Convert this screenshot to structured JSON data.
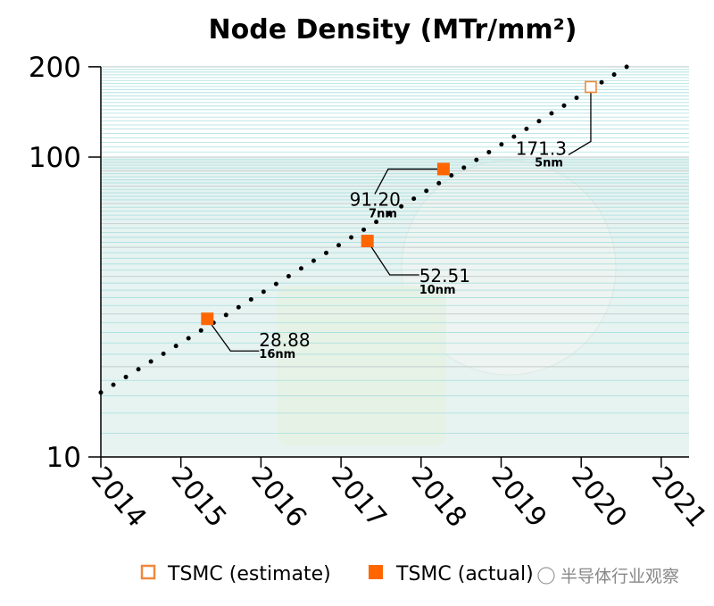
{
  "chart_data": {
    "type": "scatter",
    "title": "Node Density (MTr/mm²)",
    "xlabel": "",
    "ylabel": "",
    "xlim": [
      2014,
      2021.35
    ],
    "ylim": [
      10,
      200
    ],
    "yscale": "log",
    "y_ticks": [
      {
        "v": 10,
        "label": "10"
      },
      {
        "v": 100,
        "label": "100"
      },
      {
        "v": 200,
        "label": "200"
      }
    ],
    "x_ticks": [
      {
        "v": 2014,
        "label": "2014"
      },
      {
        "v": 2015,
        "label": "2015"
      },
      {
        "v": 2016,
        "label": "2016"
      },
      {
        "v": 2017,
        "label": "2017"
      },
      {
        "v": 2018,
        "label": "2018"
      },
      {
        "v": 2019,
        "label": "2019"
      },
      {
        "v": 2020,
        "label": "2020"
      },
      {
        "v": 2021,
        "label": "2021"
      }
    ],
    "grid": true,
    "series": [
      {
        "name": "TSMC (estimate)",
        "style": "hollow-square",
        "color": "#f0883e",
        "points": [
          {
            "x": 2020.12,
            "y": 171.3,
            "value": "171.3",
            "node": "5nm"
          }
        ]
      },
      {
        "name": "TSMC (actual)",
        "style": "filled-square",
        "color": "#ff6600",
        "points": [
          {
            "x": 2015.33,
            "y": 28.88,
            "value": "28.88",
            "node": "16nm"
          },
          {
            "x": 2017.33,
            "y": 52.51,
            "value": "52.51",
            "node": "10nm"
          },
          {
            "x": 2018.28,
            "y": 91.2,
            "value": "91.20",
            "node": "7nm"
          }
        ]
      }
    ],
    "trendline": {
      "style": "dotted",
      "color": "#000000",
      "from": {
        "x": 2014,
        "y": 16.4
      },
      "to": {
        "x": 2020.62,
        "y": 204
      }
    },
    "legend": {
      "placement": "bottom",
      "items": [
        "TSMC (estimate)",
        "TSMC (actual)"
      ]
    }
  },
  "watermark": "半导体行业观察"
}
